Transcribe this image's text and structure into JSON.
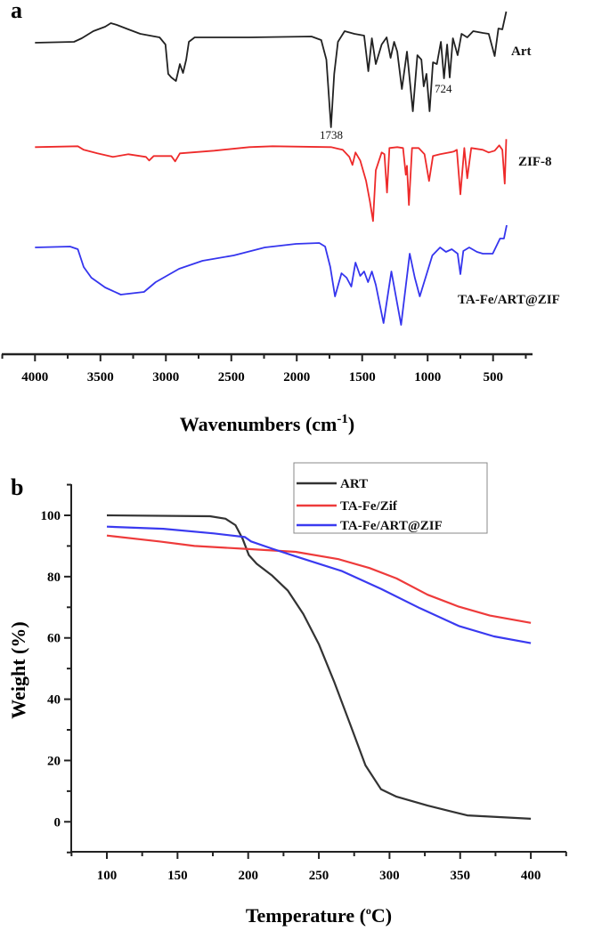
{
  "chart_data": [
    {
      "panel_label": "a",
      "type": "line",
      "title": "",
      "xlabel": "Wavenumbers (cm",
      "xlabel_sup": "-1",
      "xlabel_close": ")",
      "ylabel": "",
      "xlim": [
        4254,
        200
      ],
      "xticks": [
        4000,
        3500,
        3000,
        2500,
        2000,
        1500,
        1000,
        500
      ],
      "y_units": "transmittance (a.u., stacked)",
      "annotations": [
        {
          "text": "1738",
          "series": "Art",
          "x": 1738
        },
        {
          "text": "724",
          "series": "Art",
          "x": 724
        }
      ],
      "series": [
        {
          "name": "Art",
          "color": "#222222",
          "points": [
            [
              4000,
              102
            ],
            [
              3702,
              103
            ],
            [
              3643,
              107
            ],
            [
              3554,
              115
            ],
            [
              3464,
              120
            ],
            [
              3420,
              124
            ],
            [
              3375,
              122
            ],
            [
              3286,
              117
            ],
            [
              3196,
              112
            ],
            [
              3048,
              108
            ],
            [
              3003,
              100
            ],
            [
              2982,
              67
            ],
            [
              2958,
              63
            ],
            [
              2923,
              59
            ],
            [
              2893,
              78
            ],
            [
              2869,
              68
            ],
            [
              2845,
              83
            ],
            [
              2824,
              103
            ],
            [
              2780,
              108
            ],
            [
              2363,
              108
            ],
            [
              1887,
              109
            ],
            [
              1813,
              105
            ],
            [
              1774,
              83
            ],
            [
              1738,
              7
            ],
            [
              1714,
              67
            ],
            [
              1685,
              103
            ],
            [
              1634,
              115
            ],
            [
              1560,
              112
            ],
            [
              1485,
              110
            ],
            [
              1453,
              70
            ],
            [
              1426,
              107
            ],
            [
              1396,
              78
            ],
            [
              1351,
              100
            ],
            [
              1313,
              108
            ],
            [
              1283,
              85
            ],
            [
              1256,
              103
            ],
            [
              1232,
              92
            ],
            [
              1197,
              50
            ],
            [
              1158,
              92
            ],
            [
              1113,
              25
            ],
            [
              1078,
              88
            ],
            [
              1048,
              83
            ],
            [
              1030,
              53
            ],
            [
              1009,
              67
            ],
            [
              985,
              25
            ],
            [
              959,
              80
            ],
            [
              929,
              78
            ],
            [
              899,
              103
            ],
            [
              875,
              62
            ],
            [
              851,
              100
            ],
            [
              831,
              63
            ],
            [
              807,
              107
            ],
            [
              771,
              88
            ],
            [
              741,
              112
            ],
            [
              697,
              108
            ],
            [
              652,
              115
            ],
            [
              578,
              113
            ],
            [
              533,
              112
            ],
            [
              488,
              87
            ],
            [
              459,
              118
            ],
            [
              429,
              117
            ],
            [
              399,
              137
            ]
          ]
        },
        {
          "name": "ZIF-8",
          "color": "#ee2a2a",
          "points": [
            [
              4000,
              88
            ],
            [
              3673,
              89
            ],
            [
              3628,
              85
            ],
            [
              3524,
              81
            ],
            [
              3405,
              77
            ],
            [
              3286,
              80
            ],
            [
              3152,
              77
            ],
            [
              3128,
              73
            ],
            [
              3093,
              78
            ],
            [
              2958,
              78
            ],
            [
              2929,
              72
            ],
            [
              2893,
              81
            ],
            [
              2631,
              84
            ],
            [
              2363,
              88
            ],
            [
              2185,
              89
            ],
            [
              1738,
              88
            ],
            [
              1649,
              85
            ],
            [
              1598,
              77
            ],
            [
              1574,
              68
            ],
            [
              1551,
              82
            ],
            [
              1515,
              73
            ],
            [
              1470,
              50
            ],
            [
              1441,
              27
            ],
            [
              1417,
              5
            ],
            [
              1396,
              62
            ],
            [
              1351,
              82
            ],
            [
              1330,
              80
            ],
            [
              1310,
              37
            ],
            [
              1292,
              87
            ],
            [
              1232,
              88
            ],
            [
              1188,
              87
            ],
            [
              1167,
              57
            ],
            [
              1158,
              67
            ],
            [
              1143,
              23
            ],
            [
              1119,
              87
            ],
            [
              1069,
              87
            ],
            [
              1024,
              80
            ],
            [
              989,
              50
            ],
            [
              959,
              78
            ],
            [
              905,
              80
            ],
            [
              801,
              83
            ],
            [
              777,
              85
            ],
            [
              750,
              35
            ],
            [
              720,
              87
            ],
            [
              697,
              53
            ],
            [
              667,
              87
            ],
            [
              578,
              85
            ],
            [
              533,
              82
            ],
            [
              488,
              84
            ],
            [
              453,
              90
            ],
            [
              429,
              85
            ],
            [
              411,
              47
            ],
            [
              399,
              97
            ]
          ]
        },
        {
          "name": "TA-Fe/ART@ZIF",
          "color": "#3535ee",
          "points": [
            [
              4000,
              92
            ],
            [
              3732,
              93
            ],
            [
              3673,
              90
            ],
            [
              3628,
              70
            ],
            [
              3569,
              58
            ],
            [
              3464,
              47
            ],
            [
              3345,
              39
            ],
            [
              3167,
              42
            ],
            [
              3078,
              53
            ],
            [
              2899,
              68
            ],
            [
              2720,
              77
            ],
            [
              2482,
              83
            ],
            [
              2244,
              92
            ],
            [
              2006,
              96
            ],
            [
              1828,
              97
            ],
            [
              1783,
              93
            ],
            [
              1744,
              70
            ],
            [
              1708,
              37
            ],
            [
              1658,
              63
            ],
            [
              1619,
              58
            ],
            [
              1583,
              48
            ],
            [
              1551,
              75
            ],
            [
              1515,
              60
            ],
            [
              1485,
              65
            ],
            [
              1455,
              53
            ],
            [
              1426,
              65
            ],
            [
              1396,
              50
            ],
            [
              1337,
              7
            ],
            [
              1277,
              65
            ],
            [
              1203,
              5
            ],
            [
              1137,
              85
            ],
            [
              1098,
              58
            ],
            [
              1060,
              37
            ],
            [
              964,
              83
            ],
            [
              905,
              92
            ],
            [
              860,
              87
            ],
            [
              816,
              90
            ],
            [
              771,
              85
            ],
            [
              750,
              62
            ],
            [
              727,
              88
            ],
            [
              682,
              92
            ],
            [
              623,
              87
            ],
            [
              578,
              85
            ],
            [
              503,
              85
            ],
            [
              447,
              102
            ],
            [
              417,
              102
            ],
            [
              396,
              117
            ]
          ]
        }
      ]
    },
    {
      "panel_label": "b",
      "type": "line",
      "title": "",
      "xlabel": "Temperature (",
      "xlabel_sup": "o",
      "xlabel_close": "C)",
      "ylabel": "Weight (%)",
      "xlim": [
        74,
        425
      ],
      "ylim": [
        -10,
        110
      ],
      "xticks": [
        100,
        150,
        200,
        250,
        300,
        350,
        400
      ],
      "yticks": [
        0,
        20,
        40,
        60,
        80,
        100
      ],
      "legend_position": "top-right",
      "series": [
        {
          "name": "ART",
          "color": "#333333",
          "points": [
            [
              100,
              100
            ],
            [
              173,
              99.7
            ],
            [
              184,
              98.9
            ],
            [
              191,
              96.8
            ],
            [
              196,
              92.4
            ],
            [
              200.5,
              87
            ],
            [
              206,
              84.2
            ],
            [
              217,
              80.3
            ],
            [
              228,
              75.5
            ],
            [
              239,
              67.8
            ],
            [
              250,
              58
            ],
            [
              261,
              45.5
            ],
            [
              272,
              32
            ],
            [
              283,
              18.4
            ],
            [
              294,
              10.6
            ],
            [
              305,
              8.2
            ],
            [
              327,
              5.3
            ],
            [
              355,
              2.1
            ],
            [
              400,
              1
            ]
          ]
        },
        {
          "name": "TA-Fe/Zif",
          "color": "#ee3b3b",
          "points": [
            [
              100,
              93.4
            ],
            [
              137,
              91.5
            ],
            [
              162,
              90
            ],
            [
              200.5,
              89
            ],
            [
              233.5,
              88.1
            ],
            [
              263.8,
              85.7
            ],
            [
              285.8,
              82.8
            ],
            [
              305,
              79.4
            ],
            [
              327,
              74.1
            ],
            [
              349,
              70.2
            ],
            [
              371,
              67.3
            ],
            [
              400,
              64.9
            ]
          ]
        },
        {
          "name": "TA-Fe/ART@ZIF",
          "color": "#3a3af0",
          "points": [
            [
              100,
              96.3
            ],
            [
              140,
              95.6
            ],
            [
              175.7,
              94.1
            ],
            [
              197.7,
              92.9
            ],
            [
              202,
              91.5
            ],
            [
              217,
              89.1
            ],
            [
              233.5,
              86.6
            ],
            [
              266.5,
              81.8
            ],
            [
              294,
              76
            ],
            [
              321.5,
              69.7
            ],
            [
              349,
              63.9
            ],
            [
              373.9,
              60.5
            ],
            [
              400,
              58.3
            ]
          ]
        }
      ]
    }
  ]
}
